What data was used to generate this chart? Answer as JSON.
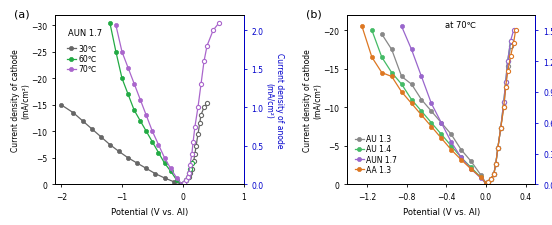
{
  "panel_a": {
    "title_label": "AUN 1.7",
    "panel_label": "(a)",
    "xlabel": "Potential (V vs. Al)",
    "ylabel_left": "Current density of cathode\n(mA/cm²)",
    "ylabel_right": "Current density of anode\n(mA/cm²)",
    "xlim": [
      -2.1,
      1.0
    ],
    "ylim_left": [
      0,
      -32
    ],
    "ylim_right": [
      0.0,
      2.2
    ],
    "xticks": [
      -2,
      -1,
      0,
      1
    ],
    "yticks_left": [
      0,
      -5,
      -10,
      -15,
      -20,
      -25,
      -30
    ],
    "yticks_right": [
      0.0,
      0.5,
      1.0,
      1.5,
      2.0
    ],
    "series": [
      {
        "label": "30℃",
        "color": "#666666",
        "cathode_x": [
          -2.0,
          -1.8,
          -1.65,
          -1.5,
          -1.35,
          -1.2,
          -1.05,
          -0.9,
          -0.75,
          -0.6,
          -0.45,
          -0.3,
          -0.15,
          -0.02
        ],
        "cathode_y": [
          -15,
          -13.5,
          -12,
          -10.5,
          -9,
          -7.5,
          -6.2,
          -5.0,
          -4.0,
          -3.0,
          -2.0,
          -1.2,
          -0.5,
          -0.05
        ],
        "anode_x": [
          0.02,
          0.05,
          0.1,
          0.12,
          0.15,
          0.18,
          0.2,
          0.22,
          0.25,
          0.28,
          0.3,
          0.35,
          0.4
        ],
        "anode_y": [
          0.02,
          0.05,
          0.1,
          0.15,
          0.2,
          0.3,
          0.4,
          0.5,
          0.65,
          0.8,
          0.9,
          1.0,
          1.05
        ]
      },
      {
        "label": "60℃",
        "color": "#22aa44",
        "cathode_x": [
          -1.2,
          -1.1,
          -1.0,
          -0.9,
          -0.8,
          -0.7,
          -0.6,
          -0.5,
          -0.4,
          -0.3,
          -0.2,
          -0.1,
          -0.02
        ],
        "cathode_y": [
          -30.5,
          -25,
          -20,
          -17,
          -14,
          -12,
          -10,
          -8,
          -6,
          -4,
          -2.5,
          -0.8,
          -0.05
        ],
        "anode_x": [
          0.02,
          0.05,
          0.08,
          0.1,
          0.12,
          0.15
        ],
        "anode_y": [
          0.02,
          0.05,
          0.1,
          0.15,
          0.2,
          0.28
        ]
      },
      {
        "label": "70℃",
        "color": "#aa66cc",
        "cathode_x": [
          -1.1,
          -1.0,
          -0.9,
          -0.8,
          -0.7,
          -0.6,
          -0.5,
          -0.4,
          -0.3,
          -0.2,
          -0.1,
          -0.02
        ],
        "cathode_y": [
          -30,
          -25,
          -22,
          -19,
          -16,
          -13,
          -10,
          -7.5,
          -5,
          -3,
          -1.2,
          -0.1
        ],
        "anode_x": [
          0.02,
          0.05,
          0.08,
          0.1,
          0.12,
          0.15,
          0.17,
          0.2,
          0.25,
          0.3,
          0.35,
          0.4,
          0.5,
          0.6
        ],
        "anode_y": [
          0.02,
          0.05,
          0.1,
          0.15,
          0.25,
          0.4,
          0.55,
          0.75,
          1.0,
          1.3,
          1.6,
          1.8,
          2.0,
          2.1
        ]
      }
    ]
  },
  "panel_b": {
    "annotation": "at 70℃",
    "panel_label": "(b)",
    "xlabel": "Potential (V vs. Al)",
    "ylabel_left": "Current density of cathode\n(mA/cm²)",
    "ylabel_right": "Current density of anode\n(mA/cm²)",
    "xlim": [
      -1.4,
      0.5
    ],
    "ylim_left": [
      0,
      -22
    ],
    "ylim_right": [
      0.0,
      1.65
    ],
    "xticks": [
      -1.2,
      -0.8,
      -0.4,
      0.0,
      0.4
    ],
    "yticks_left": [
      0,
      -5,
      -10,
      -15,
      -20
    ],
    "yticks_right": [
      0.0,
      0.3,
      0.6,
      0.9,
      1.2,
      1.5
    ],
    "series": [
      {
        "label": "AU 1.3",
        "color": "#888888",
        "cathode_x": [
          -1.05,
          -0.95,
          -0.85,
          -0.75,
          -0.65,
          -0.55,
          -0.45,
          -0.35,
          -0.25,
          -0.15,
          -0.05,
          0.0
        ],
        "cathode_y": [
          -19.5,
          -17.5,
          -14,
          -13,
          -11,
          -9.5,
          -8.0,
          -6.5,
          -4.5,
          -3.0,
          -1.2,
          -0.2
        ],
        "anode_x": [
          0.02,
          0.05,
          0.08,
          0.1,
          0.12,
          0.15,
          0.18,
          0.2,
          0.22,
          0.25
        ],
        "anode_y": [
          0.02,
          0.05,
          0.1,
          0.2,
          0.35,
          0.55,
          0.75,
          0.95,
          1.15,
          1.35
        ]
      },
      {
        "label": "AU 1.4",
        "color": "#44bb66",
        "cathode_x": [
          -1.15,
          -1.05,
          -0.95,
          -0.85,
          -0.75,
          -0.65,
          -0.55,
          -0.45,
          -0.35,
          -0.25,
          -0.15,
          -0.05,
          0.0
        ],
        "cathode_y": [
          -20,
          -16.5,
          -14.5,
          -13,
          -11,
          -9.5,
          -8.0,
          -6.5,
          -5.0,
          -3.5,
          -2.2,
          -0.9,
          -0.1
        ],
        "anode_x": [
          0.02,
          0.05,
          0.08,
          0.1,
          0.12,
          0.15,
          0.18,
          0.2,
          0.22,
          0.25
        ],
        "anode_y": [
          0.02,
          0.05,
          0.1,
          0.2,
          0.35,
          0.55,
          0.8,
          1.0,
          1.2,
          1.4
        ]
      },
      {
        "label": "AUN 1.7",
        "color": "#9966cc",
        "cathode_x": [
          -0.85,
          -0.75,
          -0.65,
          -0.55,
          -0.45,
          -0.35,
          -0.25,
          -0.15,
          -0.05,
          0.0
        ],
        "cathode_y": [
          -20.5,
          -17.5,
          -14,
          -10.5,
          -8.0,
          -5.5,
          -3.5,
          -2.0,
          -0.8,
          -0.1
        ],
        "anode_x": [
          0.02,
          0.05,
          0.08,
          0.1,
          0.12,
          0.15,
          0.18,
          0.2,
          0.22,
          0.25,
          0.28
        ],
        "anode_y": [
          0.02,
          0.05,
          0.1,
          0.2,
          0.35,
          0.55,
          0.8,
          1.0,
          1.2,
          1.4,
          1.5
        ]
      },
      {
        "label": "AA 1.3",
        "color": "#dd7722",
        "cathode_x": [
          -1.25,
          -1.15,
          -1.05,
          -0.95,
          -0.85,
          -0.75,
          -0.65,
          -0.55,
          -0.45,
          -0.35,
          -0.25,
          -0.15,
          -0.05,
          0.0
        ],
        "cathode_y": [
          -20.5,
          -16.5,
          -14.5,
          -14,
          -12,
          -10.5,
          -9.0,
          -7.5,
          -6.0,
          -4.5,
          -3.2,
          -2.0,
          -0.9,
          -0.2
        ],
        "anode_x": [
          0.02,
          0.05,
          0.08,
          0.1,
          0.12,
          0.15,
          0.18,
          0.2,
          0.22,
          0.25,
          0.28,
          0.3
        ],
        "anode_y": [
          0.02,
          0.05,
          0.1,
          0.2,
          0.35,
          0.55,
          0.75,
          0.95,
          1.1,
          1.25,
          1.38,
          1.5
        ]
      }
    ]
  }
}
